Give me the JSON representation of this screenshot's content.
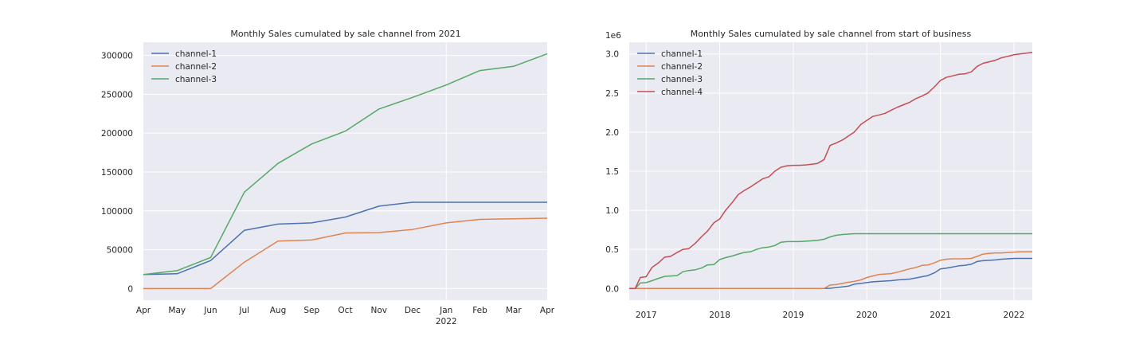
{
  "figure": {
    "background": "#ffffff",
    "panel_color": "#eaeaf2",
    "grid_color": "#ffffff"
  },
  "chart_data": [
    {
      "type": "line",
      "title": "Monthly Sales cumulated by sale channel from 2021",
      "xlabel": "",
      "ylabel": "",
      "x": [
        "2021-04",
        "2021-05",
        "2021-06",
        "2021-07",
        "2021-08",
        "2021-09",
        "2021-10",
        "2021-11",
        "2021-12",
        "2022-01",
        "2022-02",
        "2022-03",
        "2022-04"
      ],
      "x_tick_labels": [
        "Apr",
        "May",
        "Jun",
        "Jul",
        "Aug",
        "Sep",
        "Oct",
        "Nov",
        "Dec",
        "Jan",
        "Feb",
        "Mar",
        "Apr"
      ],
      "x_tick_sublabels": {
        "9": "2022"
      },
      "y_ticks": [
        0,
        50000,
        100000,
        150000,
        200000,
        250000,
        300000
      ],
      "y_tick_labels": [
        "0",
        "50000",
        "100000",
        "150000",
        "200000",
        "250000",
        "300000"
      ],
      "ylim": [
        -15000,
        317000
      ],
      "grid": true,
      "legend_position": "top-left",
      "series": [
        {
          "name": "channel-1",
          "color": "#4c72b0",
          "values": [
            18000,
            19000,
            36000,
            75000,
            83000,
            84500,
            92000,
            106000,
            111000,
            111000,
            111000,
            111000,
            111000
          ]
        },
        {
          "name": "channel-2",
          "color": "#dd8452",
          "values": [
            0,
            0,
            0,
            34000,
            61000,
            62500,
            71500,
            72000,
            76000,
            84500,
            89000,
            89800,
            90500
          ]
        },
        {
          "name": "channel-3",
          "color": "#55a868",
          "values": [
            18000,
            23000,
            40000,
            124000,
            161000,
            186000,
            202500,
            231000,
            246000,
            262000,
            280500,
            286000,
            302000
          ]
        }
      ]
    },
    {
      "type": "line",
      "title": "Monthly Sales cumulated by sale channel from start of business",
      "xlabel": "",
      "ylabel": "",
      "y_offset_label": "1e6",
      "xlim": [
        2016.77,
        2022.25
      ],
      "ylim": [
        -0.15,
        3.15
      ],
      "x_ticks": [
        2017,
        2018,
        2019,
        2020,
        2021,
        2022
      ],
      "x_tick_labels": [
        "2017",
        "2018",
        "2019",
        "2020",
        "2021",
        "2022"
      ],
      "y_ticks": [
        0,
        0.5,
        1.0,
        1.5,
        2.0,
        2.5,
        3.0
      ],
      "y_tick_labels": [
        "0.0",
        "0.5",
        "1.0",
        "1.5",
        "2.0",
        "2.5",
        "3.0"
      ],
      "grid": true,
      "legend_position": "top-left",
      "series": [
        {
          "name": "channel-1",
          "color": "#4c72b0",
          "points": [
            [
              2016.77,
              0
            ],
            [
              2019.42,
              0
            ],
            [
              2019.5,
              0.003
            ],
            [
              2019.58,
              0.01
            ],
            [
              2019.67,
              0.02
            ],
            [
              2019.75,
              0.03
            ],
            [
              2019.83,
              0.055
            ],
            [
              2019.92,
              0.065
            ],
            [
              2020.0,
              0.075
            ],
            [
              2020.08,
              0.085
            ],
            [
              2020.17,
              0.09
            ],
            [
              2020.25,
              0.095
            ],
            [
              2020.33,
              0.1
            ],
            [
              2020.42,
              0.11
            ],
            [
              2020.5,
              0.115
            ],
            [
              2020.58,
              0.12
            ],
            [
              2020.67,
              0.135
            ],
            [
              2020.75,
              0.15
            ],
            [
              2020.83,
              0.165
            ],
            [
              2020.92,
              0.2
            ],
            [
              2021.0,
              0.25
            ],
            [
              2021.08,
              0.26
            ],
            [
              2021.17,
              0.275
            ],
            [
              2021.25,
              0.29
            ],
            [
              2021.33,
              0.295
            ],
            [
              2021.42,
              0.31
            ],
            [
              2021.5,
              0.345
            ],
            [
              2021.58,
              0.355
            ],
            [
              2021.67,
              0.36
            ],
            [
              2021.75,
              0.365
            ],
            [
              2021.83,
              0.375
            ],
            [
              2021.92,
              0.38
            ],
            [
              2022.0,
              0.385
            ],
            [
              2022.08,
              0.385
            ],
            [
              2022.17,
              0.385
            ],
            [
              2022.25,
              0.385
            ]
          ]
        },
        {
          "name": "channel-2",
          "color": "#dd8452",
          "points": [
            [
              2016.77,
              0
            ],
            [
              2019.42,
              0
            ],
            [
              2019.5,
              0.045
            ],
            [
              2019.58,
              0.05
            ],
            [
              2019.67,
              0.065
            ],
            [
              2019.75,
              0.08
            ],
            [
              2019.83,
              0.09
            ],
            [
              2019.92,
              0.11
            ],
            [
              2020.0,
              0.14
            ],
            [
              2020.08,
              0.16
            ],
            [
              2020.17,
              0.18
            ],
            [
              2020.25,
              0.185
            ],
            [
              2020.33,
              0.19
            ],
            [
              2020.42,
              0.21
            ],
            [
              2020.5,
              0.23
            ],
            [
              2020.58,
              0.25
            ],
            [
              2020.67,
              0.27
            ],
            [
              2020.75,
              0.295
            ],
            [
              2020.83,
              0.3
            ],
            [
              2020.92,
              0.33
            ],
            [
              2021.0,
              0.36
            ],
            [
              2021.08,
              0.375
            ],
            [
              2021.17,
              0.38
            ],
            [
              2021.25,
              0.38
            ],
            [
              2021.33,
              0.38
            ],
            [
              2021.42,
              0.385
            ],
            [
              2021.5,
              0.41
            ],
            [
              2021.58,
              0.44
            ],
            [
              2021.67,
              0.45
            ],
            [
              2021.75,
              0.455
            ],
            [
              2021.83,
              0.455
            ],
            [
              2021.92,
              0.46
            ],
            [
              2022.0,
              0.465
            ],
            [
              2022.08,
              0.47
            ],
            [
              2022.17,
              0.47
            ],
            [
              2022.25,
              0.47
            ]
          ]
        },
        {
          "name": "channel-3",
          "color": "#55a868",
          "points": [
            [
              2016.77,
              0
            ],
            [
              2016.85,
              0
            ],
            [
              2016.92,
              0.07
            ],
            [
              2017.0,
              0.075
            ],
            [
              2017.08,
              0.1
            ],
            [
              2017.17,
              0.13
            ],
            [
              2017.25,
              0.155
            ],
            [
              2017.33,
              0.16
            ],
            [
              2017.42,
              0.165
            ],
            [
              2017.5,
              0.215
            ],
            [
              2017.58,
              0.23
            ],
            [
              2017.67,
              0.24
            ],
            [
              2017.75,
              0.26
            ],
            [
              2017.83,
              0.3
            ],
            [
              2017.92,
              0.305
            ],
            [
              2018.0,
              0.37
            ],
            [
              2018.08,
              0.395
            ],
            [
              2018.17,
              0.415
            ],
            [
              2018.25,
              0.44
            ],
            [
              2018.33,
              0.46
            ],
            [
              2018.42,
              0.47
            ],
            [
              2018.5,
              0.5
            ],
            [
              2018.58,
              0.52
            ],
            [
              2018.67,
              0.53
            ],
            [
              2018.75,
              0.55
            ],
            [
              2018.83,
              0.59
            ],
            [
              2018.92,
              0.6
            ],
            [
              2019.0,
              0.6
            ],
            [
              2019.08,
              0.6
            ],
            [
              2019.17,
              0.605
            ],
            [
              2019.25,
              0.61
            ],
            [
              2019.33,
              0.615
            ],
            [
              2019.42,
              0.63
            ],
            [
              2019.5,
              0.66
            ],
            [
              2019.58,
              0.68
            ],
            [
              2019.67,
              0.69
            ],
            [
              2019.75,
              0.695
            ],
            [
              2019.83,
              0.7
            ],
            [
              2019.92,
              0.7
            ],
            [
              2022.25,
              0.7
            ]
          ]
        },
        {
          "name": "channel-4",
          "color": "#c44e52",
          "points": [
            [
              2016.77,
              0
            ],
            [
              2016.85,
              0
            ],
            [
              2016.92,
              0.14
            ],
            [
              2017.0,
              0.15
            ],
            [
              2017.08,
              0.27
            ],
            [
              2017.17,
              0.33
            ],
            [
              2017.25,
              0.4
            ],
            [
              2017.33,
              0.41
            ],
            [
              2017.42,
              0.46
            ],
            [
              2017.5,
              0.5
            ],
            [
              2017.58,
              0.51
            ],
            [
              2017.67,
              0.58
            ],
            [
              2017.75,
              0.66
            ],
            [
              2017.83,
              0.73
            ],
            [
              2017.92,
              0.84
            ],
            [
              2018.0,
              0.89
            ],
            [
              2018.08,
              1.0
            ],
            [
              2018.17,
              1.1
            ],
            [
              2018.25,
              1.2
            ],
            [
              2018.33,
              1.25
            ],
            [
              2018.42,
              1.3
            ],
            [
              2018.5,
              1.35
            ],
            [
              2018.58,
              1.4
            ],
            [
              2018.67,
              1.43
            ],
            [
              2018.75,
              1.5
            ],
            [
              2018.83,
              1.55
            ],
            [
              2018.92,
              1.57
            ],
            [
              2019.0,
              1.575
            ],
            [
              2019.08,
              1.575
            ],
            [
              2019.17,
              1.58
            ],
            [
              2019.25,
              1.59
            ],
            [
              2019.33,
              1.6
            ],
            [
              2019.42,
              1.65
            ],
            [
              2019.5,
              1.83
            ],
            [
              2019.58,
              1.86
            ],
            [
              2019.67,
              1.9
            ],
            [
              2019.75,
              1.95
            ],
            [
              2019.83,
              2.0
            ],
            [
              2019.92,
              2.1
            ],
            [
              2020.0,
              2.15
            ],
            [
              2020.08,
              2.2
            ],
            [
              2020.17,
              2.22
            ],
            [
              2020.25,
              2.24
            ],
            [
              2020.33,
              2.28
            ],
            [
              2020.42,
              2.32
            ],
            [
              2020.5,
              2.35
            ],
            [
              2020.58,
              2.38
            ],
            [
              2020.67,
              2.43
            ],
            [
              2020.75,
              2.46
            ],
            [
              2020.83,
              2.5
            ],
            [
              2020.92,
              2.58
            ],
            [
              2021.0,
              2.66
            ],
            [
              2021.08,
              2.7
            ],
            [
              2021.17,
              2.72
            ],
            [
              2021.25,
              2.74
            ],
            [
              2021.33,
              2.745
            ],
            [
              2021.42,
              2.77
            ],
            [
              2021.5,
              2.84
            ],
            [
              2021.58,
              2.88
            ],
            [
              2021.67,
              2.9
            ],
            [
              2021.75,
              2.92
            ],
            [
              2021.83,
              2.95
            ],
            [
              2021.92,
              2.97
            ],
            [
              2022.0,
              2.99
            ],
            [
              2022.08,
              3.0
            ],
            [
              2022.17,
              3.01
            ],
            [
              2022.25,
              3.02
            ]
          ]
        }
      ]
    }
  ]
}
